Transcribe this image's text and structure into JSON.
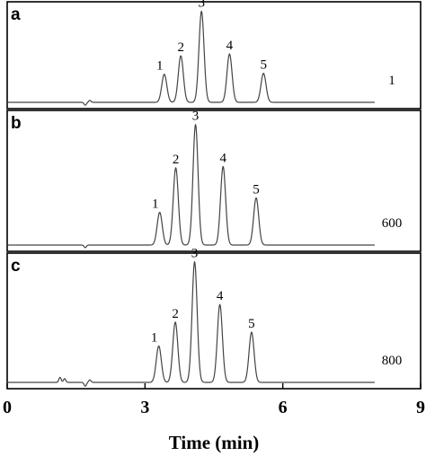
{
  "chart_data": {
    "type": "line",
    "xlabel": "Time (min)",
    "xlim": [
      0,
      9
    ],
    "xticks": [
      0,
      3,
      6,
      9
    ],
    "grid": false,
    "panels": [
      {
        "letter": "a",
        "label": "1",
        "baseline_noise": [
          {
            "x": 1.7,
            "h": -0.03
          },
          {
            "x": 1.8,
            "h": 0.02
          }
        ],
        "peaks": [
          {
            "label": "1",
            "time": 3.42,
            "height": 0.29
          },
          {
            "label": "2",
            "time": 3.78,
            "height": 0.48
          },
          {
            "label": "3",
            "time": 4.23,
            "height": 0.94
          },
          {
            "label": "4",
            "time": 4.84,
            "height": 0.5
          },
          {
            "label": "5",
            "time": 5.58,
            "height": 0.3
          }
        ]
      },
      {
        "letter": "b",
        "label": "600",
        "baseline_noise": [
          {
            "x": 1.7,
            "h": -0.02
          }
        ],
        "peaks": [
          {
            "label": "1",
            "time": 3.32,
            "height": 0.25
          },
          {
            "label": "2",
            "time": 3.67,
            "height": 0.59
          },
          {
            "label": "3",
            "time": 4.1,
            "height": 0.92
          },
          {
            "label": "4",
            "time": 4.7,
            "height": 0.6
          },
          {
            "label": "5",
            "time": 5.42,
            "height": 0.36
          }
        ]
      },
      {
        "letter": "c",
        "label": "800",
        "baseline_noise": [
          {
            "x": 1.15,
            "h": 0.04
          },
          {
            "x": 1.25,
            "h": 0.03
          },
          {
            "x": 1.7,
            "h": -0.03
          },
          {
            "x": 1.8,
            "h": 0.02
          }
        ],
        "peaks": [
          {
            "label": "1",
            "time": 3.3,
            "height": 0.29
          },
          {
            "label": "2",
            "time": 3.66,
            "height": 0.48
          },
          {
            "label": "3",
            "time": 4.08,
            "height": 0.96
          },
          {
            "label": "4",
            "time": 4.63,
            "height": 0.62
          },
          {
            "label": "5",
            "time": 5.32,
            "height": 0.4
          }
        ]
      }
    ]
  }
}
